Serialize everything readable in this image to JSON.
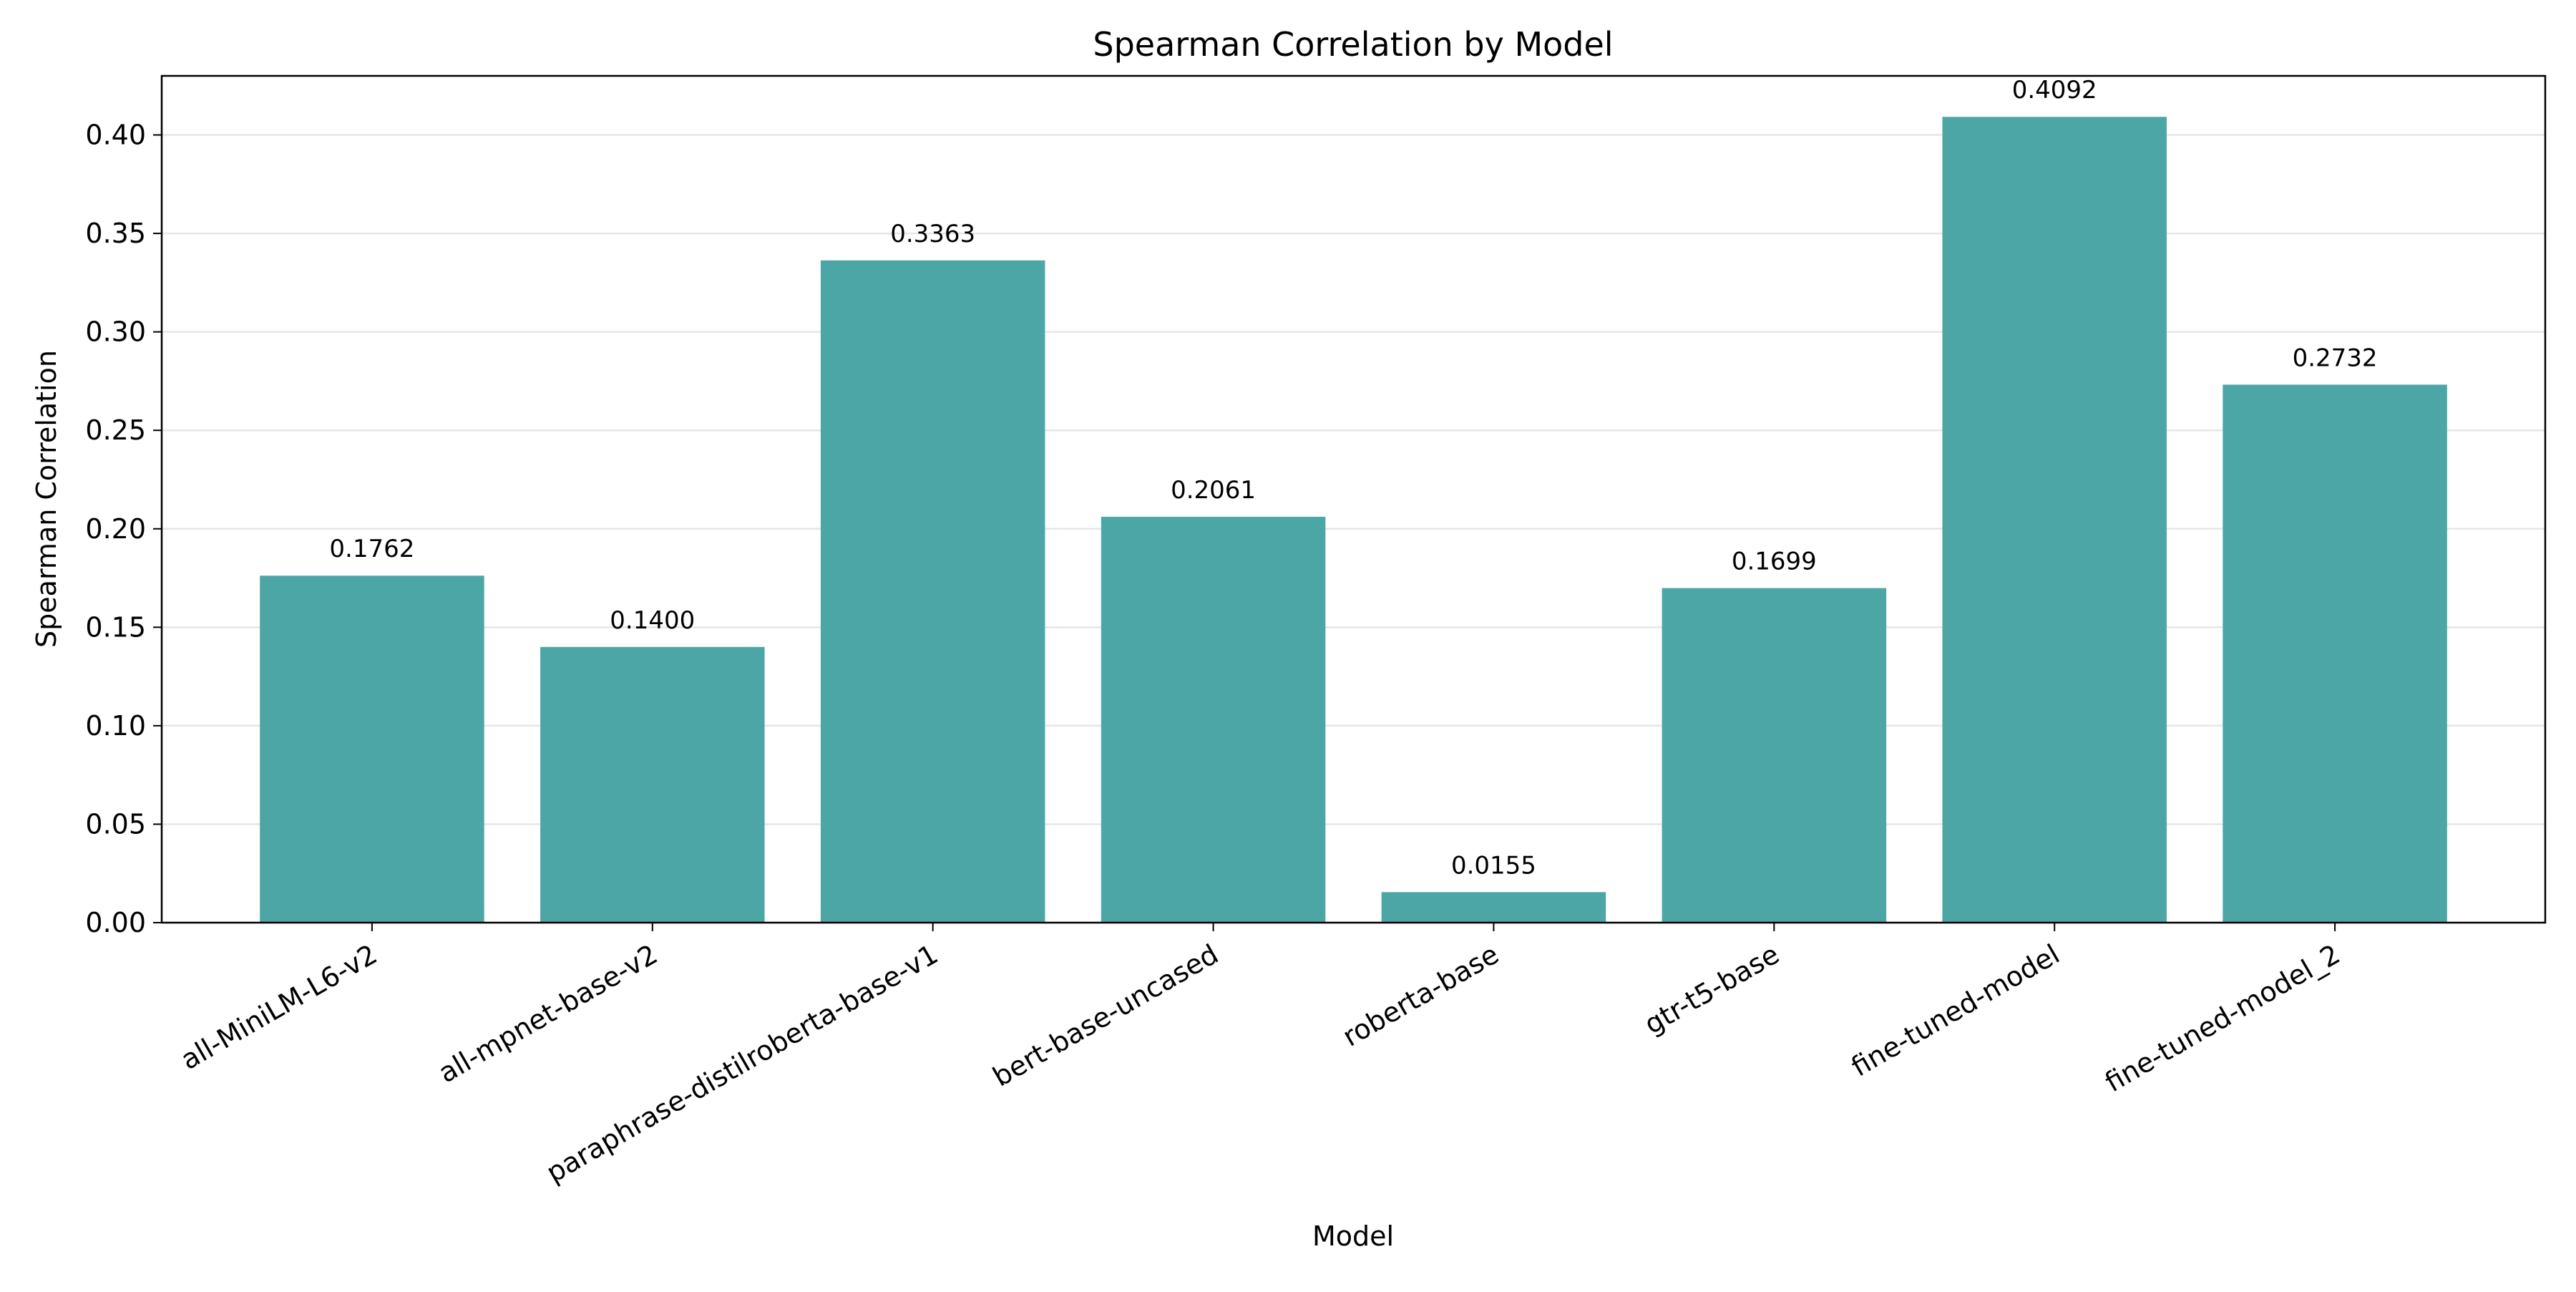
{
  "chart_data": {
    "type": "bar",
    "title": "Spearman Correlation by Model",
    "xlabel": "Model",
    "ylabel": "Spearman Correlation",
    "categories": [
      "all-MiniLM-L6-v2",
      "all-mpnet-base-v2",
      "paraphrase-distilroberta-base-v1",
      "bert-base-uncased",
      "roberta-base",
      "gtr-t5-base",
      "fine-tuned-model",
      "fine-tuned-model_2"
    ],
    "values": [
      0.1762,
      0.14,
      0.3363,
      0.2061,
      0.0155,
      0.1699,
      0.4092,
      0.2732
    ],
    "value_labels": [
      "0.1762",
      "0.1400",
      "0.3363",
      "0.2061",
      "0.0155",
      "0.1699",
      "0.4092",
      "0.2732"
    ],
    "ylim": [
      0,
      0.43
    ],
    "yticks": [
      0.0,
      0.05,
      0.1,
      0.15,
      0.2,
      0.25,
      0.3,
      0.35,
      0.4
    ],
    "ytick_labels": [
      "0.00",
      "0.05",
      "0.10",
      "0.15",
      "0.20",
      "0.25",
      "0.30",
      "0.35",
      "0.40"
    ],
    "grid": "horizontal",
    "bar_color": "#4da6a6",
    "grid_color": "#e6e6e6"
  }
}
